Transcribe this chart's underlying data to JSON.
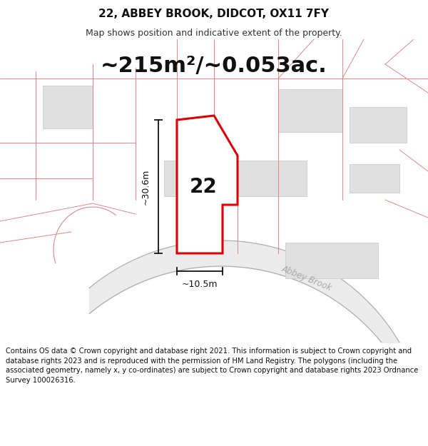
{
  "title": "22, ABBEY BROOK, DIDCOT, OX11 7FY",
  "subtitle": "Map shows position and indicative extent of the property.",
  "area_text": "~215m²/~0.053ac.",
  "label_22": "22",
  "dim_height": "~30.6m",
  "dim_width": "~10.5m",
  "road_label": "Abbey Brook",
  "footer": "Contains OS data © Crown copyright and database right 2021. This information is subject to Crown copyright and database rights 2023 and is reproduced with the permission of HM Land Registry. The polygons (including the associated geometry, namely x, y co-ordinates) are subject to Crown copyright and database rights 2023 Ordnance Survey 100026316.",
  "bg_color": "#ffffff",
  "map_bg": "#ffffff",
  "highlight_color": "#dd0000",
  "poly_fill": "#ffffff",
  "neighbor_fill": "#e8e8e8",
  "neighbor_edge": "#e08888",
  "gray_block_fill": "#e0e0e0",
  "gray_block_edge": "#cccccc",
  "road_fill": "#e8e8e8",
  "road_outline": "#aaaaaa",
  "dim_color": "#111111",
  "title_fontsize": 11,
  "subtitle_fontsize": 9,
  "area_fontsize": 22,
  "label_fontsize": 20,
  "footer_fontsize": 7.2
}
